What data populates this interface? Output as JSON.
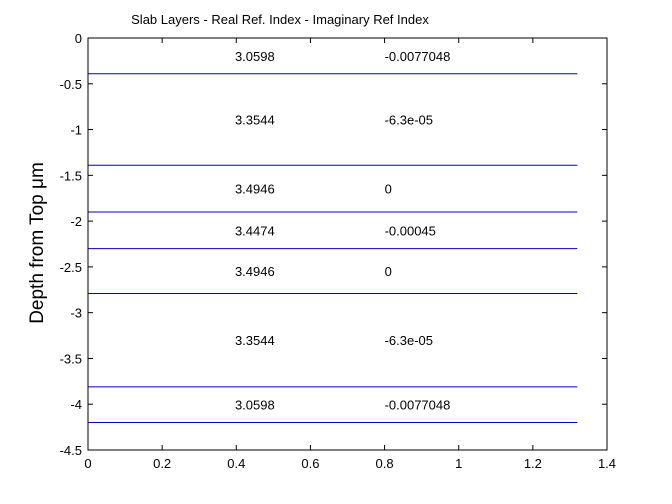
{
  "chart_data": {
    "type": "line",
    "title": "Slab Layers - Real Ref. Index - Imaginary Ref Index",
    "xlabel": "",
    "ylabel": "Depth from Top μm",
    "xlim": [
      0,
      1.4
    ],
    "ylim": [
      -4.5,
      0
    ],
    "xticks": [
      0,
      0.2,
      0.4,
      0.6,
      0.8,
      1,
      1.2,
      1.4
    ],
    "xtick_labels": [
      "0",
      "0.2",
      "0.4",
      "0.6",
      "0.8",
      "1",
      "1.2",
      "1.4"
    ],
    "yticks": [
      0,
      -0.5,
      -1,
      -1.5,
      -2,
      -2.5,
      -3,
      -3.5,
      -4,
      -4.5
    ],
    "ytick_labels": [
      "0",
      "-0.5",
      "-1",
      "-1.5",
      "-2",
      "-2.5",
      "-3",
      "-3.5",
      "-4",
      "-4.5"
    ],
    "grid": false,
    "line_color": "#0000cc",
    "boundary_x_range": [
      0,
      1.32
    ],
    "boundaries": [
      -0.39,
      -1.39,
      -1.9,
      -2.3,
      -2.79,
      -3.81,
      -4.2
    ],
    "layers": [
      {
        "real": "3.0598",
        "imag": "-0.0077048",
        "y": -0.195
      },
      {
        "real": "3.3544",
        "imag": "-6.3e-05",
        "y": -0.89
      },
      {
        "real": "3.4946",
        "imag": "0",
        "y": -1.645
      },
      {
        "real": "3.4474",
        "imag": "-0.00045",
        "y": -2.1
      },
      {
        "real": "3.4946",
        "imag": "0",
        "y": -2.545
      },
      {
        "real": "3.3544",
        "imag": "-6.3e-05",
        "y": -3.3
      },
      {
        "real": "3.0598",
        "imag": "-0.0077048",
        "y": -4.005
      }
    ],
    "real_x": 0.45,
    "imag_x": 0.8
  }
}
